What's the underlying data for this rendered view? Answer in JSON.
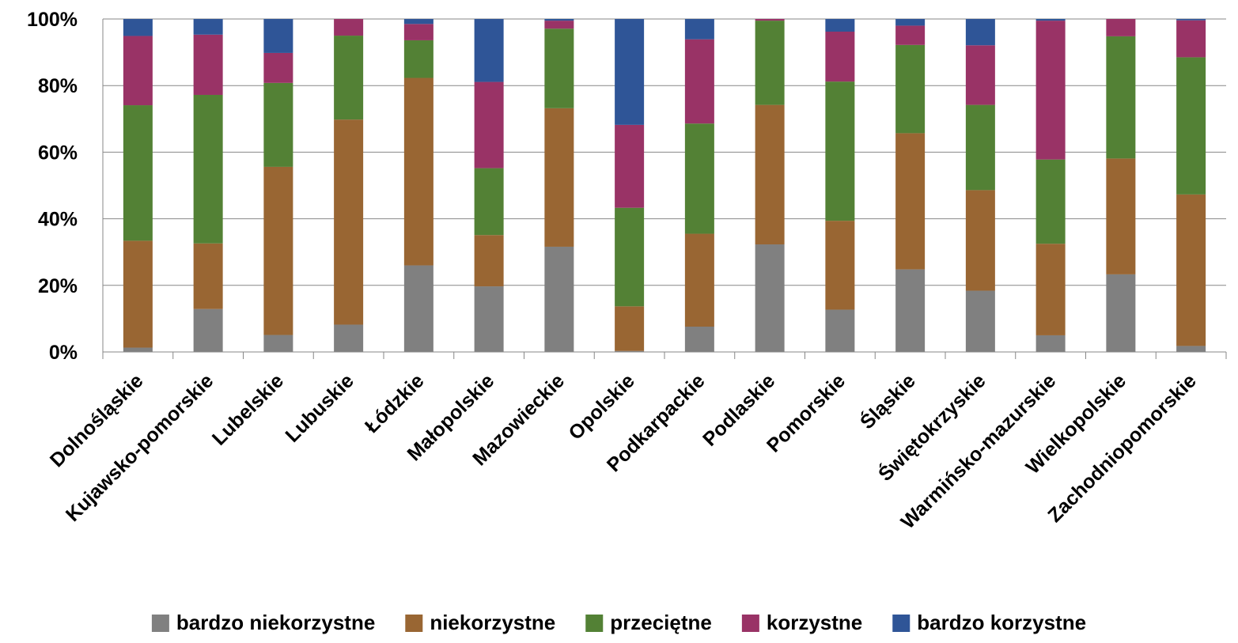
{
  "chart_data": {
    "type": "bar",
    "stacked": true,
    "percent_stacked": true,
    "categories": [
      "Dolnośląskie",
      "Kujawsko-pomorskie",
      "Lubelskie",
      "Lubuskie",
      "Łódzkie",
      "Małopolskie",
      "Mazowieckie",
      "Opolskie",
      "Podkarpackie",
      "Podlaskie",
      "Pomorskie",
      "Śląskie",
      "Świętokrzyskie",
      "Warmińsko-mazurskie",
      "Wielkopolskie",
      "Zachodniopomorskie"
    ],
    "series": [
      {
        "name": "bardzo niekorzystne",
        "color": "#808080",
        "values": [
          1.3,
          12.9,
          5.1,
          8.2,
          26.0,
          19.7,
          31.6,
          0.3,
          7.6,
          32.3,
          12.7,
          24.8,
          18.4,
          5.0,
          23.3,
          1.8
        ]
      },
      {
        "name": "niekorzystne",
        "color": "#996633",
        "values": [
          32.1,
          19.7,
          50.5,
          61.6,
          56.3,
          15.4,
          41.6,
          13.4,
          27.9,
          41.9,
          26.7,
          40.9,
          30.2,
          27.5,
          34.8,
          45.5
        ]
      },
      {
        "name": "przeciętne",
        "color": "#538135",
        "values": [
          40.7,
          44.6,
          25.2,
          25.2,
          11.3,
          20.1,
          23.9,
          29.6,
          33.1,
          25.3,
          41.8,
          26.5,
          25.6,
          25.3,
          36.7,
          41.2
        ]
      },
      {
        "name": "korzystne",
        "color": "#993366",
        "values": [
          20.8,
          18.1,
          9.0,
          5.0,
          4.9,
          25.9,
          2.4,
          24.9,
          25.3,
          0.5,
          15.0,
          5.8,
          17.9,
          41.7,
          5.2,
          11.1
        ]
      },
      {
        "name": "bardzo korzystne",
        "color": "#2F5597",
        "values": [
          5.1,
          4.7,
          10.2,
          0.0,
          1.5,
          18.9,
          0.5,
          31.8,
          6.1,
          0.0,
          3.8,
          2.0,
          7.9,
          0.5,
          0.0,
          0.4
        ]
      }
    ],
    "y_ticks": [
      "0%",
      "20%",
      "40%",
      "60%",
      "80%",
      "100%"
    ],
    "ylim": [
      0,
      100
    ],
    "grid": true,
    "legend_position": "bottom"
  }
}
